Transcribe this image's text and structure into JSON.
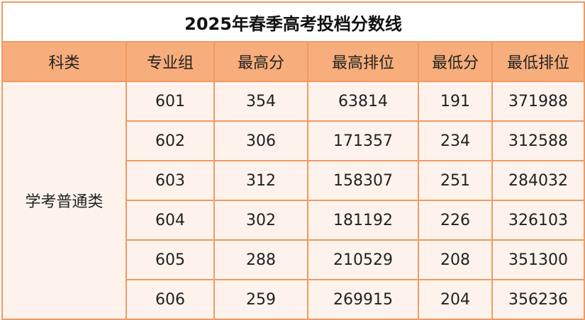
{
  "title": "2025年春季高考投档分数线",
  "headers": [
    "科类",
    "专业组",
    "最高分",
    "最高排位",
    "最低分",
    "最低排位"
  ],
  "category": "学考普通类",
  "rows": [
    [
      "601",
      "354",
      "63814",
      "191",
      "371988"
    ],
    [
      "602",
      "306",
      "171357",
      "234",
      "312588"
    ],
    [
      "603",
      "312",
      "158307",
      "251",
      "284032"
    ],
    [
      "604",
      "302",
      "181192",
      "226",
      "326103"
    ],
    [
      "605",
      "288",
      "210529",
      "208",
      "351300"
    ],
    [
      "606",
      "259",
      "269915",
      "204",
      "356236"
    ]
  ],
  "colors": {
    "border": "#ef9a62",
    "header_bg": "#f7ae7c",
    "body_bg": "#fdf3ec"
  }
}
